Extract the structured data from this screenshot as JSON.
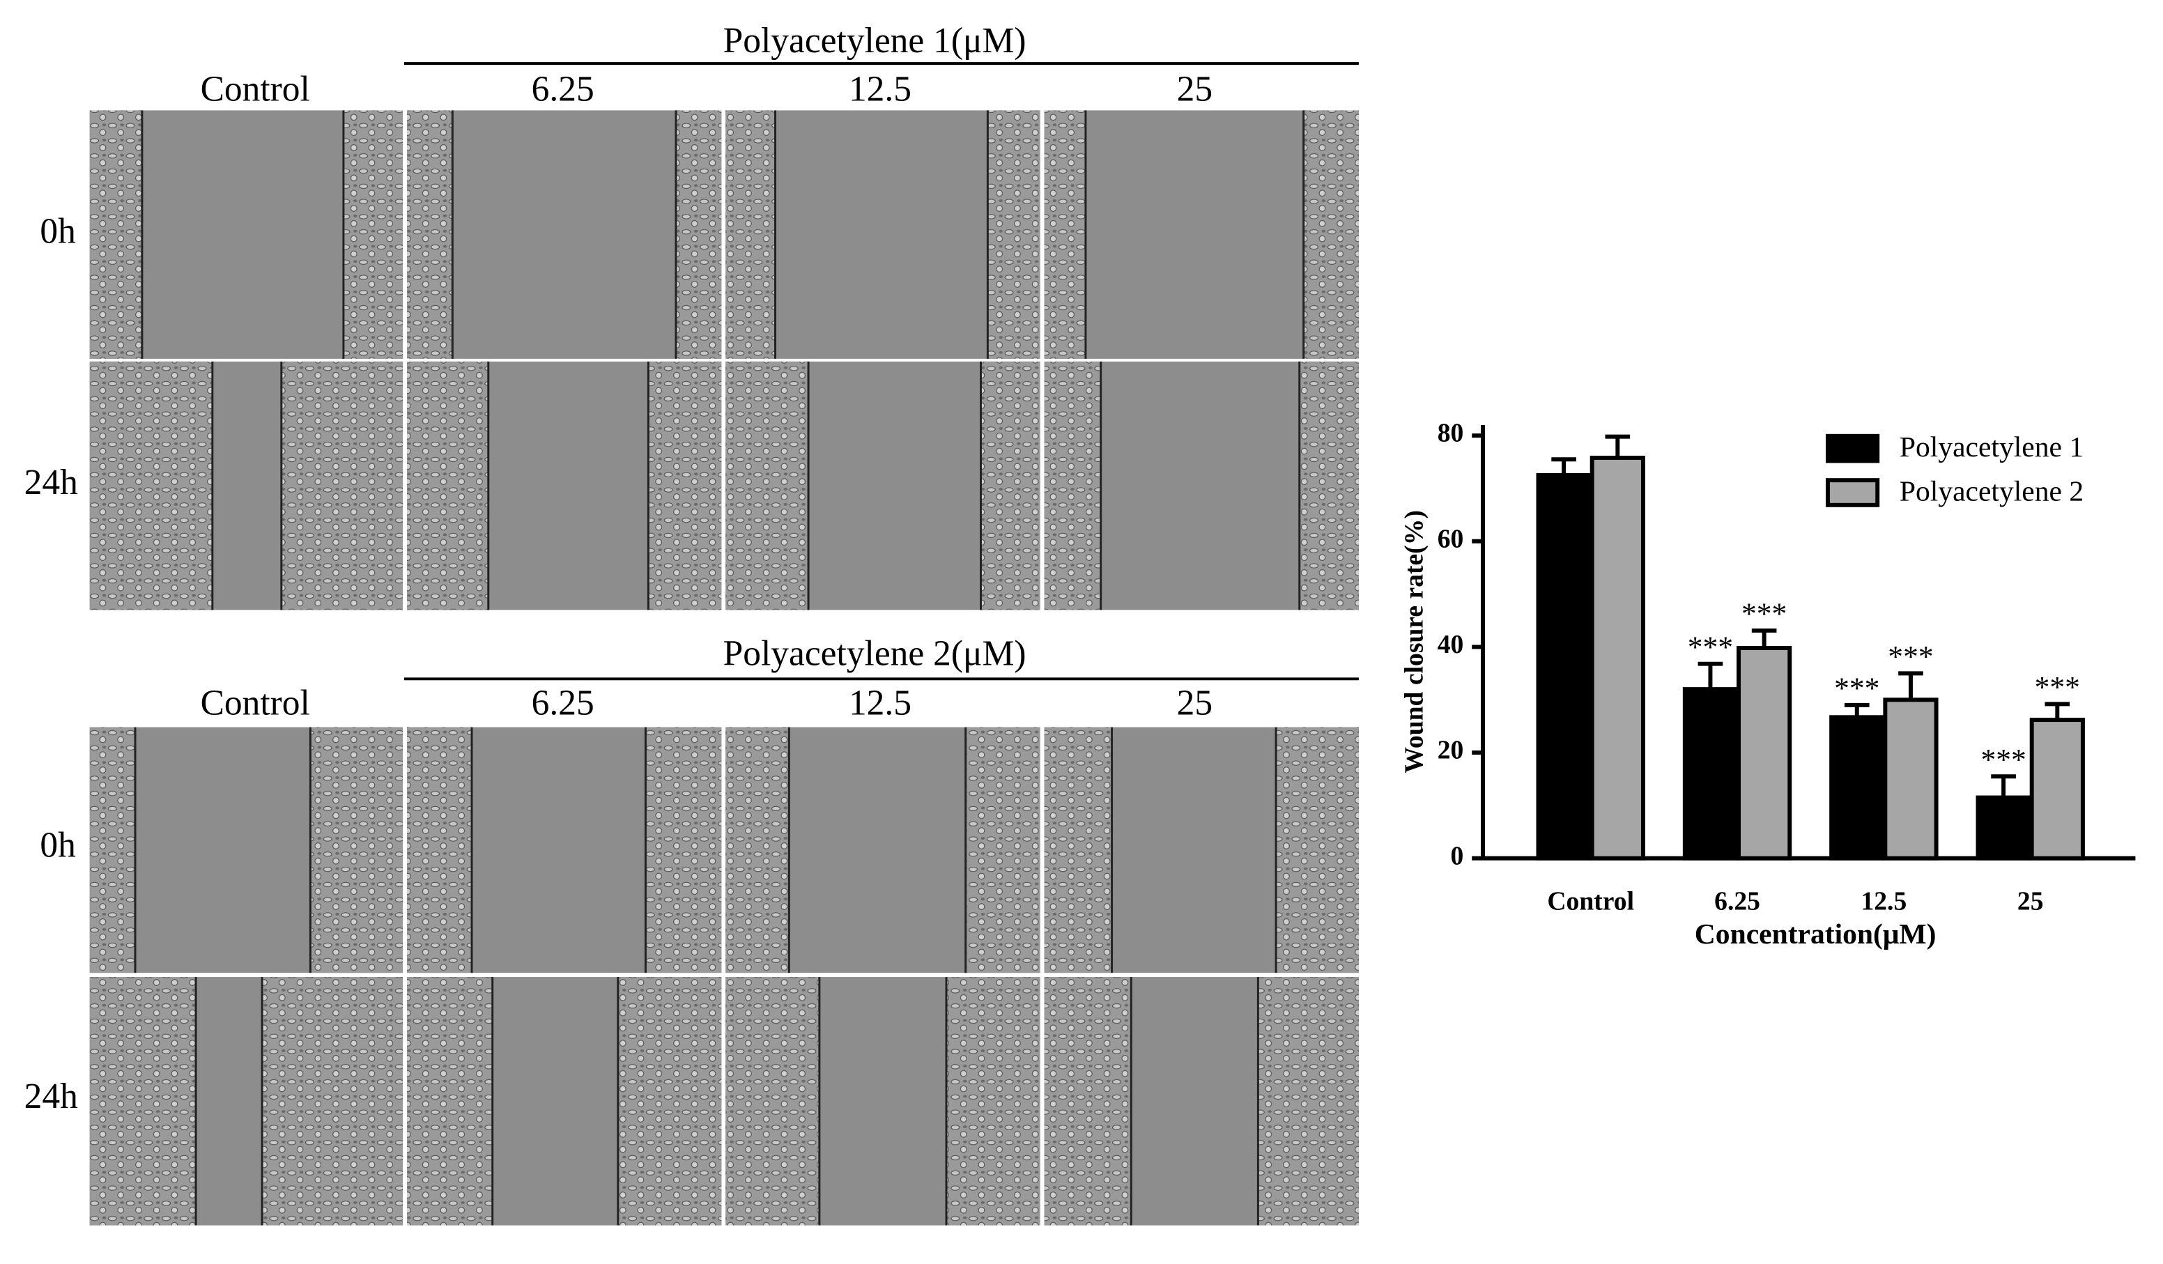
{
  "panels": [
    {
      "title": "Polyacetylene 1(μM)",
      "columns": [
        "Control",
        "6.25",
        "12.5",
        "25"
      ],
      "rows": [
        "0h",
        "24h"
      ]
    },
    {
      "title": "Polyacetylene 2(μM)",
      "columns": [
        "Control",
        "6.25",
        "12.5",
        "25"
      ],
      "rows": [
        "0h",
        "24h"
      ]
    }
  ],
  "chart_data": {
    "type": "bar",
    "ylabel": "Wound closure rate(%)",
    "xlabel": "Concentration(μM)",
    "categories": [
      "Control",
      "6.25",
      "12.5",
      "25"
    ],
    "series": [
      {
        "name": "Polyacetylene 1",
        "color": "#000000",
        "values": [
          72.5,
          32,
          26.7,
          11.5
        ],
        "errors": [
          3,
          4.8,
          2.3,
          4
        ],
        "annotations": [
          null,
          "***",
          "***",
          "***"
        ]
      },
      {
        "name": "Polyacetylene 2",
        "color": "#a6a6a6",
        "values": [
          75.8,
          39.8,
          30,
          26.2
        ],
        "errors": [
          4,
          3.3,
          5,
          3
        ],
        "annotations": [
          null,
          "***",
          "***",
          "***"
        ]
      }
    ],
    "ylim": [
      0,
      82
    ],
    "yticks": [
      0,
      20,
      40,
      60,
      80
    ],
    "legend": "upper right"
  }
}
